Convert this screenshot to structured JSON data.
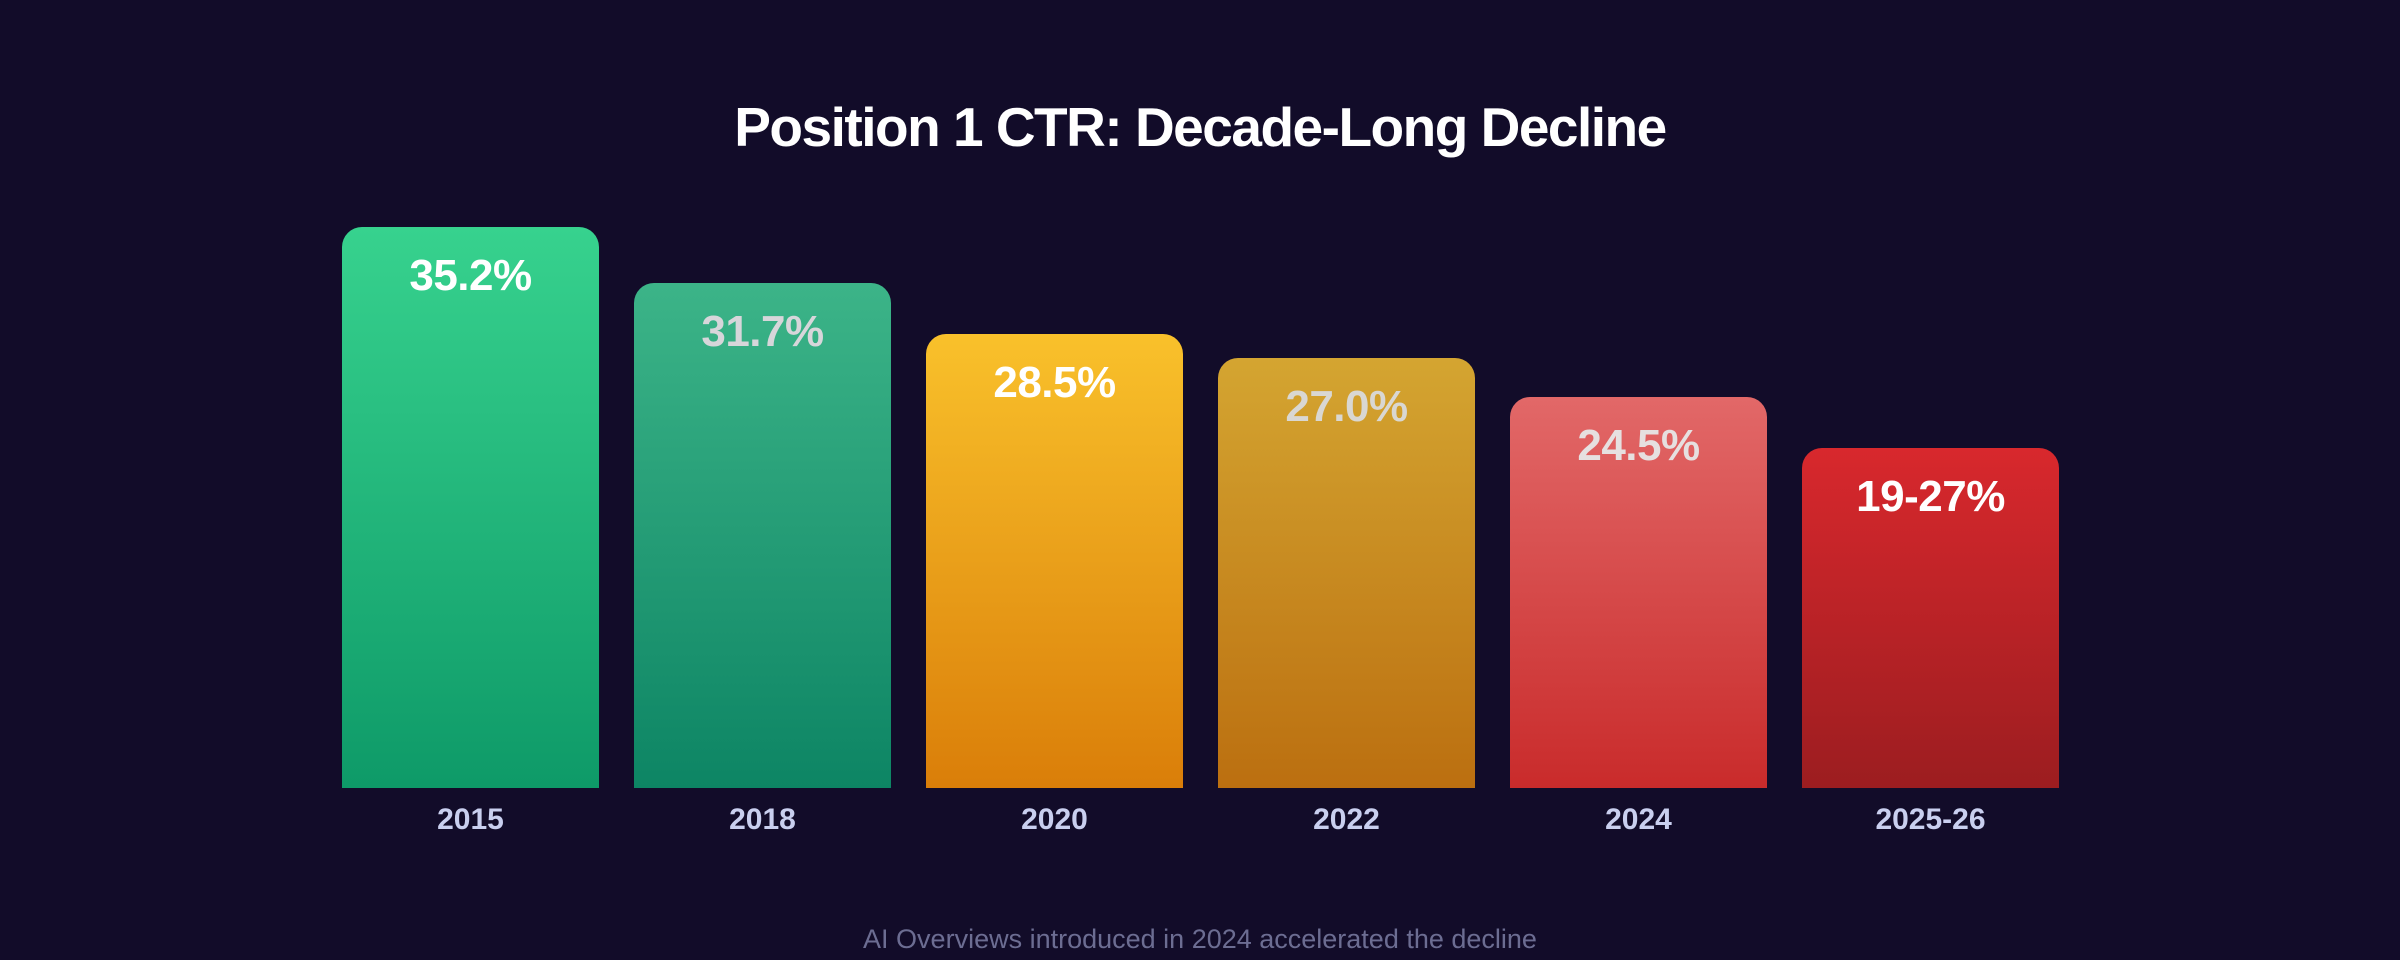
{
  "colors": {
    "background": "#120c29",
    "title": "#ffffff",
    "axis_label": "#c9cfef",
    "footnote": "#6c6d92"
  },
  "title": {
    "text": "Position 1 CTR: Decade-Long Decline"
  },
  "footer": {
    "text": "AI Overviews introduced in 2024 accelerated the decline"
  },
  "chart_data": {
    "type": "bar",
    "title": "Position 1 CTR: Decade-Long Decline",
    "xlabel": "",
    "ylabel": "",
    "unit": "%",
    "grid": false,
    "legend": false,
    "categories": [
      "2015",
      "2018",
      "2020",
      "2022",
      "2024",
      "2025-26"
    ],
    "values": [
      35.2,
      31.7,
      28.5,
      27.0,
      24.5,
      null
    ],
    "value_labels": [
      "35.2%",
      "31.7%",
      "28.5%",
      "27.0%",
      "24.5%",
      "19-27%"
    ],
    "final_bar_range": {
      "low": 19,
      "high": 27,
      "label": "19-27%"
    },
    "annotation": "AI Overviews introduced in 2024 accelerated the decline",
    "ylim": [
      0,
      35.2
    ],
    "bars": [
      {
        "category": "2015",
        "display": "35.2%",
        "render_value": 35.2,
        "gradient_top": "#37d28e",
        "gradient_bottom": "#0e9a68",
        "label_color": "#ffffff"
      },
      {
        "category": "2018",
        "display": "31.7%",
        "render_value": 31.7,
        "gradient_top": "#3cb488",
        "gradient_bottom": "#0d8564",
        "label_color": "#d7d6da"
      },
      {
        "category": "2020",
        "display": "28.5%",
        "render_value": 28.5,
        "gradient_top": "#f9c12b",
        "gradient_bottom": "#da7e09",
        "label_color": "#ffffff"
      },
      {
        "category": "2022",
        "display": "27.0%",
        "render_value": 27.0,
        "gradient_top": "#d4a531",
        "gradient_bottom": "#bb6f10",
        "label_color": "#d9d7d2"
      },
      {
        "category": "2024",
        "display": "24.5%",
        "render_value": 24.5,
        "gradient_top": "#e26868",
        "gradient_bottom": "#c92b2b",
        "label_color": "#e6e0e0"
      },
      {
        "category": "2025-26",
        "display": "19-27%",
        "render_value": 21.3,
        "gradient_top": "#d8282d",
        "gradient_bottom": "#9c1d20",
        "label_color": "#ffffff"
      }
    ]
  }
}
